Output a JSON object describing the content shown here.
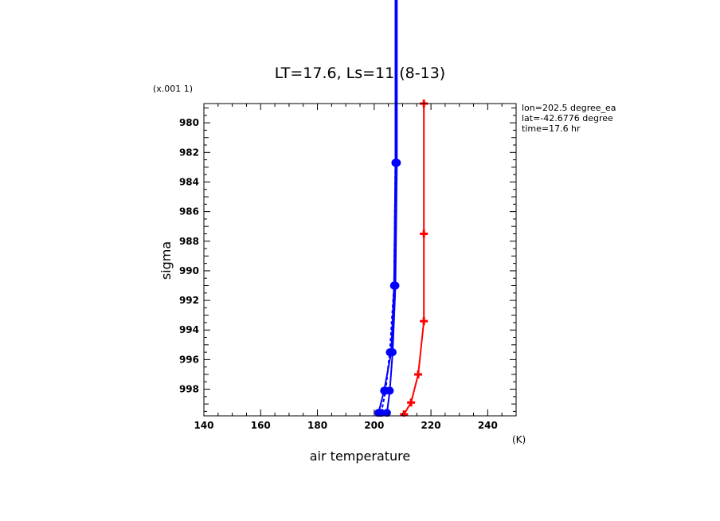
{
  "chart_data": {
    "type": "line",
    "title": "LT=17.6, Ls=11 (8-13)",
    "xlabel": "air temperature",
    "ylabel": "sigma",
    "x_unit": "(K)",
    "y_scale_note": "(x.001 1)",
    "xlim": [
      140,
      250
    ],
    "ylim": [
      999.8,
      978.7
    ],
    "x_ticks": [
      "140",
      "160",
      "180",
      "200",
      "220",
      "240"
    ],
    "y_ticks": [
      "980",
      "982",
      "984",
      "986",
      "988",
      "990",
      "992",
      "994",
      "996",
      "998"
    ],
    "info_lines": [
      "lon=202.5 degree_ea",
      "lat=-42.6776 degree",
      "time=17.6 hr"
    ],
    "series": [
      {
        "color": "#ff0000",
        "style": "solid",
        "marker": "plus",
        "points": [
          [
            210.5,
            999.7
          ],
          [
            213.0,
            998.9
          ],
          [
            215.5,
            997.0
          ],
          [
            217.5,
            993.4
          ],
          [
            217.5,
            987.5
          ],
          [
            217.5,
            978.7
          ]
        ]
      },
      {
        "color": "#0000ff",
        "style": "solid",
        "marker": "dot",
        "points": [
          [
            204.5,
            999.6
          ],
          [
            205.5,
            998.1
          ],
          [
            206.5,
            995.5
          ],
          [
            207.5,
            991.0
          ],
          [
            208.0,
            982.7
          ],
          [
            208.0,
            970.0
          ]
        ]
      },
      {
        "color": "#0000ff",
        "style": "dashed",
        "marker": "dot",
        "points": [
          [
            202.5,
            999.6
          ],
          [
            204.0,
            998.1
          ],
          [
            205.5,
            995.5
          ],
          [
            207.0,
            991.0
          ],
          [
            207.5,
            982.7
          ],
          [
            207.5,
            970.0
          ]
        ]
      },
      {
        "color": "#0000ff",
        "style": "solid",
        "marker": "dot",
        "points": [
          [
            201.5,
            999.6
          ],
          [
            203.5,
            998.1
          ],
          [
            206.0,
            995.5
          ],
          [
            207.0,
            991.0
          ],
          [
            207.5,
            982.7
          ],
          [
            207.5,
            970.0
          ]
        ]
      }
    ]
  }
}
